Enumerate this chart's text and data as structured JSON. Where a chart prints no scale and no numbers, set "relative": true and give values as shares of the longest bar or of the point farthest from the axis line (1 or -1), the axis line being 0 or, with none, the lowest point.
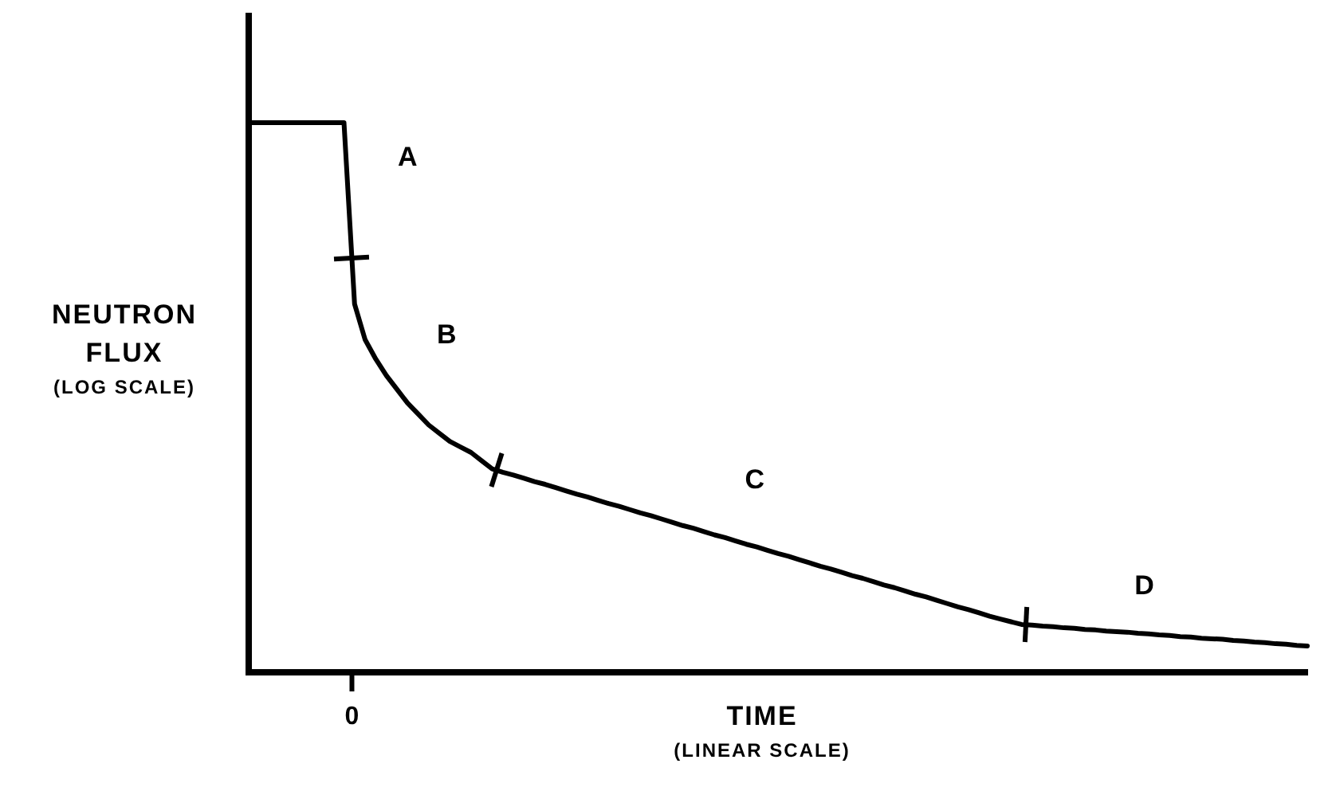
{
  "chart_data": {
    "type": "line",
    "relative": true,
    "xlabel": "TIME\n(LINEAR SCALE)",
    "ylabel": "NEUTRON\nFLUX\n(LOG SCALE)",
    "categories": [
      null,
      null,
      null,
      null,
      null,
      null,
      null,
      null,
      null,
      null,
      null,
      null,
      null,
      null,
      null,
      null,
      null,
      null,
      null,
      null,
      null,
      null,
      null,
      null,
      null,
      null,
      null,
      null,
      null,
      null,
      null,
      null,
      null,
      null,
      null,
      null,
      null,
      null,
      null,
      null,
      null,
      null,
      null,
      null,
      null,
      null,
      null,
      null,
      null,
      null,
      null,
      null,
      null,
      null,
      null,
      null,
      null,
      null,
      null,
      null,
      null,
      null,
      null,
      null,
      null,
      null,
      null,
      null,
      null,
      null,
      null,
      null,
      null,
      null,
      null,
      null,
      null,
      null,
      null,
      null,
      null,
      null,
      null,
      null,
      null,
      null,
      null,
      null,
      null,
      null,
      null,
      null,
      null,
      null,
      null,
      null,
      null,
      null,
      null,
      null,
      null
    ],
    "series": [
      {
        "color": "#000000",
        "values": [
          1,
          1,
          1,
          1,
          1,
          1,
          1,
          1,
          1,
          1,
          0.67,
          0.605,
          0.57,
          0.54,
          0.515,
          0.49,
          0.47,
          0.45,
          0.435,
          0.42,
          0.41,
          0.4,
          0.385,
          0.37,
          0.364,
          0.359,
          0.353,
          0.347,
          0.342,
          0.336,
          0.33,
          0.324,
          0.319,
          0.313,
          0.307,
          0.302,
          0.296,
          0.29,
          0.285,
          0.279,
          0.273,
          0.267,
          0.262,
          0.256,
          0.25,
          0.245,
          0.239,
          0.233,
          0.228,
          0.222,
          0.216,
          0.211,
          0.205,
          0.199,
          0.193,
          0.188,
          0.182,
          0.176,
          0.171,
          0.165,
          0.159,
          0.154,
          0.148,
          0.142,
          0.137,
          0.131,
          0.125,
          0.119,
          0.114,
          0.108,
          0.102,
          0.097,
          0.092,
          0.087,
          0.086,
          0.084,
          0.083,
          0.081,
          0.08,
          0.078,
          0.077,
          0.075,
          0.074,
          0.073,
          0.071,
          0.07,
          0.068,
          0.067,
          0.065,
          0.064,
          0.062,
          0.061,
          0.06,
          0.058,
          0.057,
          0.055,
          0.054,
          0.052,
          0.051,
          0.049,
          0.048
        ]
      }
    ],
    "annotations": [
      "A",
      "B",
      "C",
      "D",
      "0"
    ]
  }
}
